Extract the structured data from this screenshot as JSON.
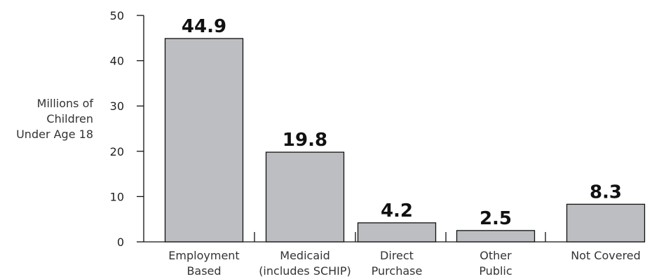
{
  "chart_data": {
    "type": "bar",
    "categories": [
      [
        "Employment",
        "Based"
      ],
      [
        "Medicaid",
        "(includes SCHIP)"
      ],
      [
        "Direct",
        "Purchase"
      ],
      [
        "Other",
        "Public"
      ],
      [
        "Not Covered"
      ]
    ],
    "values": [
      44.9,
      19.8,
      4.2,
      2.5,
      8.3
    ],
    "value_labels": [
      "44.9",
      "19.8",
      "4.2",
      "2.5",
      "8.3"
    ],
    "ylabel": [
      "Millions of",
      "Children",
      "Under Age 18"
    ],
    "yticks": [
      0,
      10,
      20,
      30,
      40,
      50
    ],
    "ylim": [
      0,
      50
    ],
    "grid": false,
    "bar_color": "#bdbec1"
  }
}
